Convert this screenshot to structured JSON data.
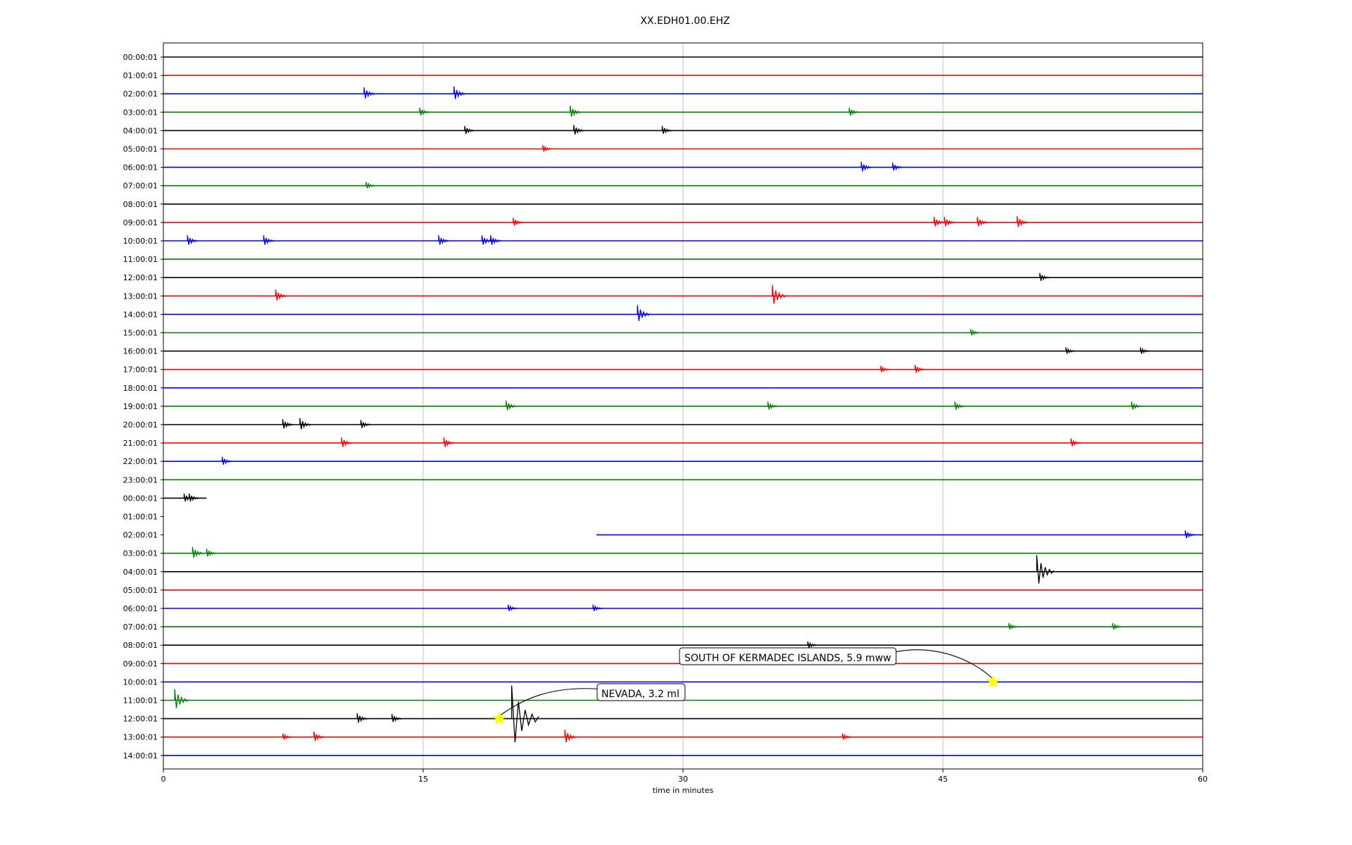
{
  "chart_data": {
    "type": "line",
    "title": "XX.EDH01.00.EHZ",
    "xlabel": "time in minutes",
    "ylabel": "",
    "xlim": [
      0,
      60
    ],
    "x_ticks": [
      "0",
      "15",
      "30",
      "45",
      "60"
    ],
    "grid": "vertical",
    "row_labels": [
      "00:00:01",
      "01:00:01",
      "02:00:01",
      "03:00:01",
      "04:00:01",
      "05:00:01",
      "06:00:01",
      "07:00:01",
      "08:00:01",
      "09:00:01",
      "10:00:01",
      "11:00:01",
      "12:00:01",
      "13:00:01",
      "14:00:01",
      "15:00:01",
      "16:00:01",
      "17:00:01",
      "18:00:01",
      "19:00:01",
      "20:00:01",
      "21:00:01",
      "22:00:01",
      "23:00:01",
      "00:00:01",
      "01:00:01",
      "02:00:01",
      "03:00:01",
      "04:00:01",
      "05:00:01",
      "06:00:01",
      "07:00:01",
      "08:00:01",
      "09:00:01",
      "10:00:01",
      "11:00:01",
      "12:00:01",
      "13:00:01",
      "14:00:01"
    ],
    "row_colors": [
      "#000000",
      "#ff0000",
      "#0000ff",
      "#008000"
    ],
    "traces": [
      {
        "row": 0,
        "start": 0,
        "end": 60
      },
      {
        "row": 1,
        "start": 0,
        "end": 60
      },
      {
        "row": 2,
        "start": 0,
        "end": 60
      },
      {
        "row": 3,
        "start": 0,
        "end": 60
      },
      {
        "row": 4,
        "start": 0,
        "end": 60
      },
      {
        "row": 5,
        "start": 0,
        "end": 60
      },
      {
        "row": 6,
        "start": 0,
        "end": 60
      },
      {
        "row": 7,
        "start": 0,
        "end": 60
      },
      {
        "row": 8,
        "start": 0,
        "end": 60
      },
      {
        "row": 9,
        "start": 0,
        "end": 60
      },
      {
        "row": 10,
        "start": 0,
        "end": 60
      },
      {
        "row": 11,
        "start": 0,
        "end": 60
      },
      {
        "row": 12,
        "start": 0,
        "end": 60
      },
      {
        "row": 13,
        "start": 0,
        "end": 60
      },
      {
        "row": 14,
        "start": 0,
        "end": 60
      },
      {
        "row": 15,
        "start": 0,
        "end": 60
      },
      {
        "row": 16,
        "start": 0,
        "end": 60
      },
      {
        "row": 17,
        "start": 0,
        "end": 60
      },
      {
        "row": 18,
        "start": 0,
        "end": 60
      },
      {
        "row": 19,
        "start": 0,
        "end": 60
      },
      {
        "row": 20,
        "start": 0,
        "end": 60
      },
      {
        "row": 21,
        "start": 0,
        "end": 60
      },
      {
        "row": 22,
        "start": 0,
        "end": 60
      },
      {
        "row": 23,
        "start": 0,
        "end": 60
      },
      {
        "row": 24,
        "start": 0,
        "end": 2.5
      },
      {
        "row": 26,
        "start": 25,
        "end": 60
      },
      {
        "row": 27,
        "start": 0,
        "end": 60
      },
      {
        "row": 28,
        "start": 0,
        "end": 60
      },
      {
        "row": 29,
        "start": 0,
        "end": 60
      },
      {
        "row": 30,
        "start": 0,
        "end": 60
      },
      {
        "row": 31,
        "start": 0,
        "end": 60
      },
      {
        "row": 32,
        "start": 0,
        "end": 60
      },
      {
        "row": 33,
        "start": 0,
        "end": 60
      },
      {
        "row": 34,
        "start": 0,
        "end": 60
      },
      {
        "row": 35,
        "start": 0,
        "end": 60
      },
      {
        "row": 36,
        "start": 0,
        "end": 60
      },
      {
        "row": 37,
        "start": 0,
        "end": 60
      },
      {
        "row": 38,
        "start": 0,
        "end": 60
      }
    ],
    "spikes": [
      {
        "row": 2,
        "t": 11.7,
        "amp": 0.35
      },
      {
        "row": 2,
        "t": 16.9,
        "amp": 0.4
      },
      {
        "row": 3,
        "t": 14.9,
        "amp": 0.25
      },
      {
        "row": 3,
        "t": 23.6,
        "amp": 0.35
      },
      {
        "row": 3,
        "t": 39.7,
        "amp": 0.25
      },
      {
        "row": 4,
        "t": 17.5,
        "amp": 0.25
      },
      {
        "row": 4,
        "t": 23.8,
        "amp": 0.3
      },
      {
        "row": 4,
        "t": 28.9,
        "amp": 0.25
      },
      {
        "row": 5,
        "t": 22.0,
        "amp": 0.2
      },
      {
        "row": 6,
        "t": 40.4,
        "amp": 0.3
      },
      {
        "row": 6,
        "t": 42.2,
        "amp": 0.25
      },
      {
        "row": 7,
        "t": 11.8,
        "amp": 0.2
      },
      {
        "row": 9,
        "t": 20.3,
        "amp": 0.25
      },
      {
        "row": 9,
        "t": 44.6,
        "amp": 0.3
      },
      {
        "row": 9,
        "t": 45.2,
        "amp": 0.3
      },
      {
        "row": 9,
        "t": 47.1,
        "amp": 0.3
      },
      {
        "row": 9,
        "t": 49.4,
        "amp": 0.35
      },
      {
        "row": 10,
        "t": 1.5,
        "amp": 0.3
      },
      {
        "row": 10,
        "t": 5.9,
        "amp": 0.3
      },
      {
        "row": 10,
        "t": 16.0,
        "amp": 0.3
      },
      {
        "row": 10,
        "t": 18.5,
        "amp": 0.3
      },
      {
        "row": 10,
        "t": 19.0,
        "amp": 0.3
      },
      {
        "row": 12,
        "t": 50.7,
        "amp": 0.25
      },
      {
        "row": 13,
        "t": 6.6,
        "amp": 0.35
      },
      {
        "row": 13,
        "t": 35.3,
        "amp": 0.6
      },
      {
        "row": 14,
        "t": 27.5,
        "amp": 0.5
      },
      {
        "row": 15,
        "t": 46.7,
        "amp": 0.2
      },
      {
        "row": 16,
        "t": 52.2,
        "amp": 0.2
      },
      {
        "row": 16,
        "t": 56.5,
        "amp": 0.2
      },
      {
        "row": 17,
        "t": 41.5,
        "amp": 0.2
      },
      {
        "row": 17,
        "t": 43.5,
        "amp": 0.25
      },
      {
        "row": 19,
        "t": 19.9,
        "amp": 0.3
      },
      {
        "row": 19,
        "t": 35.0,
        "amp": 0.25
      },
      {
        "row": 19,
        "t": 45.8,
        "amp": 0.25
      },
      {
        "row": 19,
        "t": 56.0,
        "amp": 0.25
      },
      {
        "row": 20,
        "t": 7.0,
        "amp": 0.3
      },
      {
        "row": 20,
        "t": 8.0,
        "amp": 0.35
      },
      {
        "row": 20,
        "t": 11.5,
        "amp": 0.25
      },
      {
        "row": 21,
        "t": 10.4,
        "amp": 0.3
      },
      {
        "row": 21,
        "t": 16.3,
        "amp": 0.3
      },
      {
        "row": 21,
        "t": 52.5,
        "amp": 0.25
      },
      {
        "row": 22,
        "t": 3.5,
        "amp": 0.25
      },
      {
        "row": 24,
        "t": 1.3,
        "amp": 0.25
      },
      {
        "row": 24,
        "t": 1.6,
        "amp": 0.25
      },
      {
        "row": 26,
        "t": 59.1,
        "amp": 0.25
      },
      {
        "row": 27,
        "t": 1.8,
        "amp": 0.35
      },
      {
        "row": 27,
        "t": 2.6,
        "amp": 0.25
      },
      {
        "row": 28,
        "t": 50.6,
        "amp": 0.9
      },
      {
        "row": 30,
        "t": 20.0,
        "amp": 0.2
      },
      {
        "row": 30,
        "t": 24.9,
        "amp": 0.2
      },
      {
        "row": 31,
        "t": 48.9,
        "amp": 0.2
      },
      {
        "row": 31,
        "t": 54.9,
        "amp": 0.2
      },
      {
        "row": 32,
        "t": 37.3,
        "amp": 0.2
      },
      {
        "row": 35,
        "t": 0.8,
        "amp": 0.6
      },
      {
        "row": 36,
        "t": 11.3,
        "amp": 0.3
      },
      {
        "row": 36,
        "t": 13.3,
        "amp": 0.25
      },
      {
        "row": 36,
        "t": 20.4,
        "amp": 1.8
      },
      {
        "row": 37,
        "t": 7.0,
        "amp": 0.2
      },
      {
        "row": 37,
        "t": 8.8,
        "amp": 0.3
      },
      {
        "row": 37,
        "t": 23.3,
        "amp": 0.4
      },
      {
        "row": 37,
        "t": 39.3,
        "amp": 0.2
      }
    ],
    "events": [
      {
        "label": "SOUTH OF KERMADEC ISLANDS, 5.9 mww",
        "row": 34,
        "t": 47.9
      },
      {
        "label": "NEVADA, 3.2 ml",
        "row": 36,
        "t": 19.4
      }
    ],
    "marker_color": "#ffff00"
  }
}
